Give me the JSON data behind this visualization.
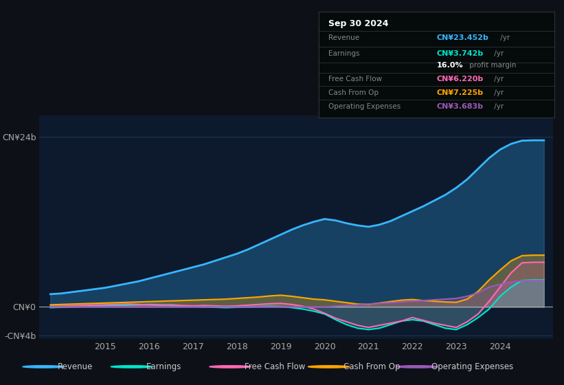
{
  "bg_color": "#0d1117",
  "plot_bg_color": "#0d1a2e",
  "grid_color": "#1e3a5f",
  "ylabel_cn0": "CN¥0",
  "ylabel_cn24b": "CN¥24b",
  "ylabel_cnneg4b": "-CN¥4b",
  "ylim": [
    -4.5,
    27
  ],
  "xlim": [
    2013.5,
    2025.2
  ],
  "xticks": [
    2015,
    2016,
    2017,
    2018,
    2019,
    2020,
    2021,
    2022,
    2023,
    2024
  ],
  "revenue_color": "#38b6ff",
  "earnings_color": "#00e5cc",
  "fcf_color": "#ff69b4",
  "cashfromop_color": "#ffa500",
  "opex_color": "#9b59b6",
  "legend_items": [
    "Revenue",
    "Earnings",
    "Free Cash Flow",
    "Cash From Op",
    "Operating Expenses"
  ],
  "legend_colors": [
    "#38b6ff",
    "#00e5cc",
    "#ff69b4",
    "#ffa500",
    "#9b59b6"
  ],
  "revenue_x": [
    2013.75,
    2014.0,
    2014.25,
    2014.5,
    2014.75,
    2015.0,
    2015.25,
    2015.5,
    2015.75,
    2016.0,
    2016.25,
    2016.5,
    2016.75,
    2017.0,
    2017.25,
    2017.5,
    2017.75,
    2018.0,
    2018.25,
    2018.5,
    2018.75,
    2019.0,
    2019.25,
    2019.5,
    2019.75,
    2020.0,
    2020.25,
    2020.5,
    2020.75,
    2021.0,
    2021.25,
    2021.5,
    2021.75,
    2022.0,
    2022.25,
    2022.5,
    2022.75,
    2023.0,
    2023.25,
    2023.5,
    2023.75,
    2024.0,
    2024.25,
    2024.5,
    2024.75,
    2025.0
  ],
  "revenue_y": [
    1.8,
    1.9,
    2.1,
    2.3,
    2.5,
    2.7,
    3.0,
    3.3,
    3.6,
    4.0,
    4.4,
    4.8,
    5.2,
    5.6,
    6.0,
    6.5,
    7.0,
    7.5,
    8.1,
    8.8,
    9.5,
    10.2,
    10.9,
    11.5,
    12.0,
    12.4,
    12.2,
    11.8,
    11.5,
    11.3,
    11.6,
    12.1,
    12.8,
    13.5,
    14.2,
    15.0,
    15.8,
    16.8,
    18.0,
    19.5,
    21.0,
    22.2,
    23.0,
    23.452,
    23.5,
    23.5
  ],
  "earnings_x": [
    2013.75,
    2014.0,
    2014.25,
    2014.5,
    2014.75,
    2015.0,
    2015.25,
    2015.5,
    2015.75,
    2016.0,
    2016.25,
    2016.5,
    2016.75,
    2017.0,
    2017.25,
    2017.5,
    2017.75,
    2018.0,
    2018.25,
    2018.5,
    2018.75,
    2019.0,
    2019.25,
    2019.5,
    2019.75,
    2020.0,
    2020.25,
    2020.5,
    2020.75,
    2021.0,
    2021.25,
    2021.5,
    2021.75,
    2022.0,
    2022.25,
    2022.5,
    2022.75,
    2023.0,
    2023.25,
    2023.5,
    2023.75,
    2024.0,
    2024.25,
    2024.5,
    2024.75,
    2025.0
  ],
  "earnings_y": [
    -0.1,
    -0.05,
    0.0,
    0.05,
    0.1,
    0.15,
    0.2,
    0.25,
    0.3,
    0.35,
    0.3,
    0.2,
    0.1,
    0.05,
    0.0,
    -0.05,
    -0.1,
    -0.05,
    0.0,
    0.05,
    0.1,
    0.05,
    -0.1,
    -0.3,
    -0.6,
    -1.0,
    -1.8,
    -2.5,
    -3.0,
    -3.2,
    -3.0,
    -2.5,
    -2.0,
    -1.8,
    -2.0,
    -2.5,
    -3.0,
    -3.2,
    -2.5,
    -1.5,
    -0.3,
    1.5,
    2.8,
    3.742,
    3.8,
    3.8
  ],
  "fcf_x": [
    2013.75,
    2014.0,
    2014.25,
    2014.5,
    2014.75,
    2015.0,
    2015.25,
    2015.5,
    2015.75,
    2016.0,
    2016.25,
    2016.5,
    2016.75,
    2017.0,
    2017.25,
    2017.5,
    2017.75,
    2018.0,
    2018.25,
    2018.5,
    2018.75,
    2019.0,
    2019.25,
    2019.5,
    2019.75,
    2020.0,
    2020.25,
    2020.5,
    2020.75,
    2021.0,
    2021.25,
    2021.5,
    2021.75,
    2022.0,
    2022.25,
    2022.5,
    2022.75,
    2023.0,
    2023.25,
    2023.5,
    2023.75,
    2024.0,
    2024.25,
    2024.5,
    2024.75,
    2025.0
  ],
  "fcf_y": [
    0.1,
    0.1,
    0.15,
    0.2,
    0.25,
    0.3,
    0.35,
    0.4,
    0.35,
    0.3,
    0.25,
    0.3,
    0.2,
    0.15,
    0.2,
    0.15,
    0.1,
    0.15,
    0.25,
    0.35,
    0.45,
    0.5,
    0.35,
    0.1,
    -0.3,
    -0.9,
    -1.6,
    -2.1,
    -2.6,
    -2.9,
    -2.6,
    -2.3,
    -2.0,
    -1.5,
    -1.9,
    -2.3,
    -2.6,
    -2.9,
    -2.1,
    -1.0,
    0.8,
    2.8,
    4.8,
    6.22,
    6.3,
    6.3
  ],
  "cashfromop_x": [
    2013.75,
    2014.0,
    2014.25,
    2014.5,
    2014.75,
    2015.0,
    2015.25,
    2015.5,
    2015.75,
    2016.0,
    2016.25,
    2016.5,
    2016.75,
    2017.0,
    2017.25,
    2017.5,
    2017.75,
    2018.0,
    2018.25,
    2018.5,
    2018.75,
    2019.0,
    2019.25,
    2019.5,
    2019.75,
    2020.0,
    2020.25,
    2020.5,
    2020.75,
    2021.0,
    2021.25,
    2021.5,
    2021.75,
    2022.0,
    2022.25,
    2022.5,
    2022.75,
    2023.0,
    2023.25,
    2023.5,
    2023.75,
    2024.0,
    2024.25,
    2024.5,
    2024.75,
    2025.0
  ],
  "cashfromop_y": [
    0.3,
    0.35,
    0.4,
    0.45,
    0.5,
    0.55,
    0.6,
    0.65,
    0.7,
    0.75,
    0.8,
    0.85,
    0.9,
    0.95,
    1.0,
    1.05,
    1.1,
    1.2,
    1.3,
    1.4,
    1.55,
    1.65,
    1.5,
    1.3,
    1.1,
    1.0,
    0.8,
    0.6,
    0.4,
    0.35,
    0.55,
    0.75,
    0.95,
    1.05,
    0.9,
    0.8,
    0.7,
    0.65,
    1.1,
    2.2,
    3.8,
    5.2,
    6.5,
    7.225,
    7.3,
    7.3
  ],
  "opex_x": [
    2013.75,
    2014.0,
    2014.25,
    2014.5,
    2014.75,
    2015.0,
    2015.25,
    2015.5,
    2015.75,
    2016.0,
    2016.25,
    2016.5,
    2016.75,
    2017.0,
    2017.25,
    2017.5,
    2017.75,
    2018.0,
    2018.25,
    2018.5,
    2018.75,
    2019.0,
    2019.25,
    2019.5,
    2019.75,
    2020.0,
    2020.25,
    2020.5,
    2020.75,
    2021.0,
    2021.25,
    2021.5,
    2021.75,
    2022.0,
    2022.25,
    2022.5,
    2022.75,
    2023.0,
    2023.25,
    2023.5,
    2023.75,
    2024.0,
    2024.25,
    2024.5,
    2024.75,
    2025.0
  ],
  "opex_y": [
    0.0,
    0.0,
    0.0,
    0.0,
    0.0,
    0.0,
    0.0,
    0.0,
    0.0,
    0.0,
    0.0,
    0.0,
    0.0,
    0.0,
    0.0,
    0.0,
    0.0,
    0.0,
    0.0,
    0.0,
    0.0,
    0.0,
    0.0,
    0.0,
    0.0,
    0.0,
    0.1,
    0.2,
    0.3,
    0.4,
    0.5,
    0.6,
    0.7,
    0.8,
    0.9,
    1.0,
    1.1,
    1.2,
    1.5,
    2.0,
    2.8,
    3.2,
    3.5,
    3.683,
    3.7,
    3.7
  ]
}
